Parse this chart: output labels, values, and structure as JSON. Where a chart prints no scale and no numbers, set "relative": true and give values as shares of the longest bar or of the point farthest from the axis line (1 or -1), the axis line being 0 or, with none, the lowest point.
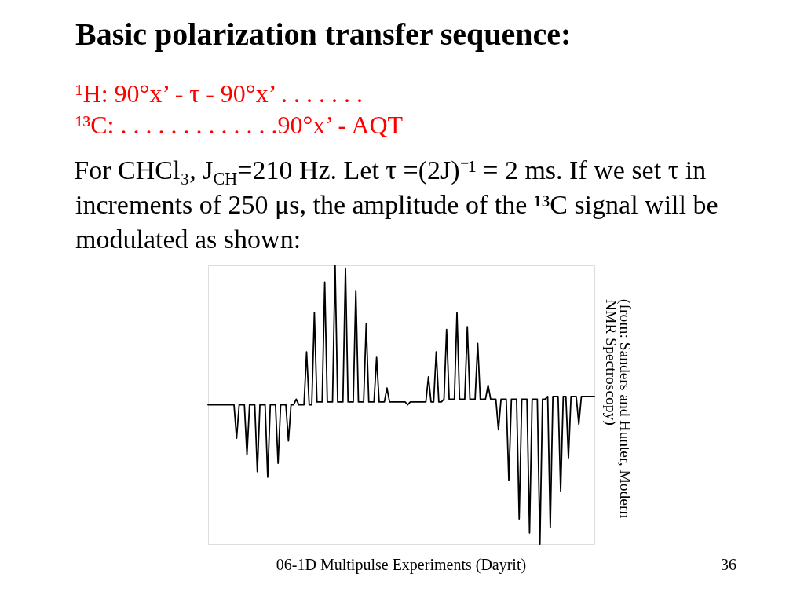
{
  "chart_data": {
    "type": "line",
    "relative": true,
    "title": "Basic polarization transfer sequence:",
    "subtitle": "¹H: 90°x’ - τ - 90°x’ . . . . . . .\n¹³C: . . . . . . . . . . . . .90°x’ - AQT",
    "annotations": [
      "For CHCl₃, J$_{CH}$=210 Hz. Let τ =(2J)⁻¹ = 2 ms. If we set τ in increments of 250 μs, the amplitude of the ¹³C signal will be modulated as shown:",
      "(from: Sanders and Hunter, Modern NMR Spectroscopy)",
      "06-1D Multipulse Experiments (Dayrit)",
      "36"
    ],
    "categories": [
      null,
      null,
      null,
      null,
      null,
      null,
      null,
      null,
      null,
      null,
      null,
      null,
      null,
      null,
      null,
      null,
      null,
      null,
      null,
      null,
      null,
      null,
      null,
      null,
      null,
      null,
      null,
      null,
      null,
      null,
      null,
      null,
      null,
      null,
      null,
      null,
      null,
      null,
      null,
      null,
      null,
      null,
      null,
      null,
      null,
      null,
      null,
      null,
      null,
      null,
      null,
      null,
      null,
      null,
      null,
      null,
      null,
      null,
      null,
      null,
      null,
      null,
      null,
      null,
      null,
      null,
      null,
      null,
      null,
      null,
      null,
      null,
      null,
      null,
      null,
      null,
      null,
      null,
      null,
      null,
      null,
      null,
      null,
      null,
      null,
      null,
      null,
      null,
      null,
      null,
      null,
      null,
      null,
      null,
      null,
      null,
      null,
      null,
      null,
      null,
      null,
      null,
      null,
      null,
      null,
      null,
      null,
      null,
      null,
      null,
      null,
      null,
      null,
      null,
      null,
      null,
      null,
      null,
      null,
      null,
      null,
      null,
      null,
      null,
      null,
      null,
      null,
      null,
      null,
      null,
      null,
      null,
      null,
      null,
      null,
      null,
      null,
      null,
      null,
      null,
      null,
      null,
      null,
      null,
      null,
      null,
      null,
      null,
      null,
      null
    ],
    "series": [
      {
        "color": "#000000",
        "values": [
          0.5,
          0.5,
          0.5,
          0.5,
          0.5,
          0.5,
          0.5,
          0.5,
          0.5,
          0.5,
          0.5,
          0.38,
          0.5,
          0.5,
          0.5,
          0.32,
          0.5,
          0.5,
          0.5,
          0.26,
          0.5,
          0.5,
          0.5,
          0.24,
          0.5,
          0.5,
          0.5,
          0.29,
          0.5,
          0.5,
          0.5,
          0.37,
          0.5,
          0.5,
          0.52,
          0.5,
          0.5,
          0.5,
          0.69,
          0.5,
          0.5,
          0.83,
          0.51,
          0.51,
          0.51,
          0.94,
          0.51,
          0.51,
          0.51,
          1,
          0.51,
          0.51,
          0.51,
          0.99,
          0.51,
          0.51,
          0.51,
          0.91,
          0.51,
          0.51,
          0.51,
          0.79,
          0.51,
          0.51,
          0.51,
          0.67,
          0.51,
          0.51,
          0.51,
          0.56,
          0.51,
          0.51,
          0.51,
          0.51,
          0.51,
          0.51,
          0.51,
          0.5,
          0.51,
          0.51,
          0.51,
          0.51,
          0.51,
          0.51,
          0.51,
          0.6,
          0.51,
          0.51,
          0.69,
          0.51,
          0.51,
          0.52,
          0.77,
          0.52,
          0.52,
          0.52,
          0.83,
          0.52,
          0.52,
          0.52,
          0.78,
          0.52,
          0.52,
          0.52,
          0.72,
          0.52,
          0.52,
          0.52,
          0.57,
          0.52,
          0.52,
          0.52,
          0.41,
          0.52,
          0.52,
          0.52,
          0.23,
          0.52,
          0.52,
          0.52,
          0.09,
          0.52,
          0.52,
          0.52,
          0.04,
          0.52,
          0.52,
          0.52,
          0,
          0.52,
          0.52,
          0.53,
          0.06,
          0.53,
          0.53,
          0.53,
          0.19,
          0.53,
          0.53,
          0.31,
          0.53,
          0.53,
          0.53,
          0.43,
          0.53,
          0.53,
          0.53,
          0.53,
          0.53,
          0.53
        ]
      }
    ]
  }
}
